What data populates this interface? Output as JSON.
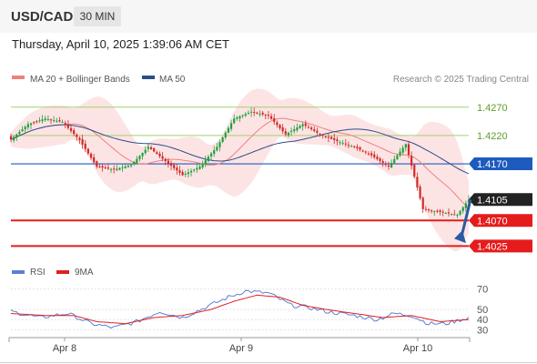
{
  "header": {
    "symbol": "USD/CAD",
    "timeframe": "30 MIN",
    "datetime": "Thursday, April 10, 2025 1:39:06 AM CET"
  },
  "legend_main": [
    {
      "label": "MA 20 + Bollinger Bands",
      "color": "#f08080"
    },
    {
      "label": "MA 50",
      "color": "#2c4d8a"
    }
  ],
  "attribution": "Research © 2025 Trading Central",
  "legend_rsi": [
    {
      "label": "RSI",
      "color": "#5b7fd6"
    },
    {
      "label": "9MA",
      "color": "#e02020"
    }
  ],
  "colors": {
    "resistance": "#a6cf6f",
    "pivot": "#1e5bbf",
    "support": "#e51c1c",
    "last": "#222222",
    "bull": "#1fa13c",
    "bear": "#d02a2a",
    "bands": "#fde4e4",
    "ma20": "#f08080",
    "ma50": "#2c4d8a",
    "arrow": "#2b5aa5",
    "rsi": "#5b7fd6",
    "rsi_ma": "#e02020"
  },
  "chart_data": [
    {
      "type": "candlestick",
      "ylim": [
        1.3995,
        1.4305
      ],
      "x_ticks": [
        "Apr 8",
        "Apr 9",
        "Apr 10"
      ],
      "last_price": "1.4105",
      "levels": [
        {
          "value": 1.427,
          "label": "1.4270",
          "kind": "resistance"
        },
        {
          "value": 1.422,
          "label": "1.4220",
          "kind": "resistance"
        },
        {
          "value": 1.417,
          "label": "1.4170",
          "kind": "pivot"
        },
        {
          "value": 1.407,
          "label": "1.4070",
          "kind": "support"
        },
        {
          "value": 1.4025,
          "label": "1.4025",
          "kind": "support"
        }
      ],
      "forecast": {
        "from": 1.4107,
        "to": 1.403,
        "direction": "down"
      },
      "anchors": [
        [
          0,
          1.4213
        ],
        [
          6,
          1.424
        ],
        [
          12,
          1.425
        ],
        [
          18,
          1.4244
        ],
        [
          24,
          1.4212
        ],
        [
          30,
          1.4165
        ],
        [
          36,
          1.416
        ],
        [
          42,
          1.4168
        ],
        [
          48,
          1.42
        ],
        [
          54,
          1.4175
        ],
        [
          60,
          1.415
        ],
        [
          66,
          1.4165
        ],
        [
          72,
          1.42
        ],
        [
          78,
          1.425
        ],
        [
          84,
          1.4262
        ],
        [
          90,
          1.4255
        ],
        [
          96,
          1.4222
        ],
        [
          102,
          1.424
        ],
        [
          108,
          1.4222
        ],
        [
          114,
          1.421
        ],
        [
          120,
          1.42
        ],
        [
          126,
          1.4185
        ],
        [
          132,
          1.4165
        ],
        [
          138,
          1.4205
        ],
        [
          144,
          1.409
        ],
        [
          150,
          1.4085
        ],
        [
          156,
          1.408
        ],
        [
          160,
          1.4107
        ]
      ]
    },
    {
      "type": "line",
      "title": "RSI",
      "ylim": [
        25,
        75
      ],
      "y_ticks": [
        70,
        50,
        40,
        30
      ],
      "series": [
        {
          "name": "RSI",
          "anchors": [
            [
              0,
              48
            ],
            [
              10,
              42
            ],
            [
              20,
              46
            ],
            [
              28,
              36
            ],
            [
              36,
              32
            ],
            [
              44,
              38
            ],
            [
              52,
              48
            ],
            [
              60,
              42
            ],
            [
              68,
              52
            ],
            [
              76,
              62
            ],
            [
              82,
              68
            ],
            [
              90,
              66
            ],
            [
              98,
              54
            ],
            [
              104,
              52
            ],
            [
              110,
              48
            ],
            [
              120,
              44
            ],
            [
              128,
              40
            ],
            [
              134,
              46
            ],
            [
              140,
              44
            ],
            [
              146,
              36
            ],
            [
              152,
              36
            ],
            [
              160,
              42
            ]
          ]
        },
        {
          "name": "9MA",
          "anchors": [
            [
              0,
              46
            ],
            [
              12,
              44
            ],
            [
              22,
              44
            ],
            [
              30,
              38
            ],
            [
              40,
              36
            ],
            [
              50,
              42
            ],
            [
              60,
              44
            ],
            [
              70,
              50
            ],
            [
              78,
              58
            ],
            [
              86,
              64
            ],
            [
              94,
              62
            ],
            [
              102,
              54
            ],
            [
              110,
              50
            ],
            [
              120,
              46
            ],
            [
              130,
              42
            ],
            [
              140,
              44
            ],
            [
              150,
              38
            ],
            [
              160,
              40
            ]
          ]
        }
      ]
    }
  ]
}
